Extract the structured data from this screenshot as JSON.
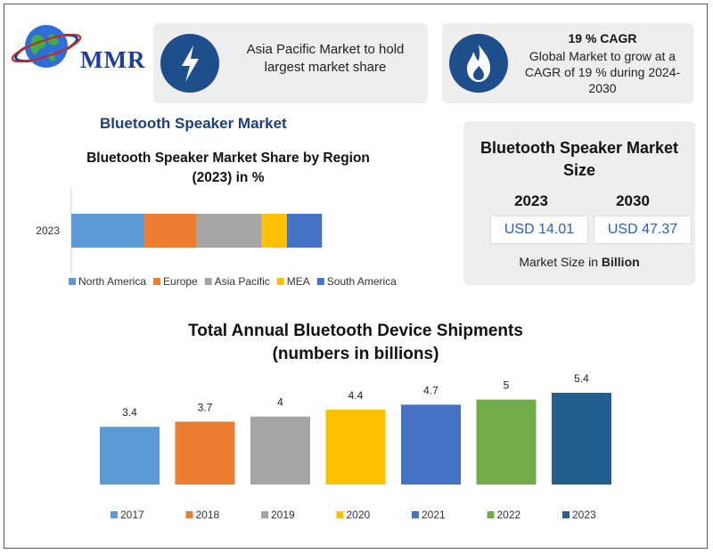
{
  "logo": {
    "text": "MMR"
  },
  "highlights": {
    "asia": {
      "text": "Asia Pacific Market to hold largest market share",
      "icon": "lightning-bolt-icon"
    },
    "cagr": {
      "title": "19 % CAGR",
      "text": "Global Market to grow at a CAGR of 19 % during 2024-2030",
      "icon": "flame-icon"
    }
  },
  "section_title": "Bluetooth Speaker Market",
  "market_size": {
    "title": "Bluetooth Speaker Market Size",
    "year_a": "2023",
    "value_a": "USD 14.01",
    "year_b": "2030",
    "value_b": "USD 47.37",
    "footer_prefix": "Market Size in ",
    "footer_unit": "Billion"
  },
  "colors": {
    "accent_blue": "#1f4e8c",
    "title_blue": "#1d3f7a"
  },
  "chart_data": [
    {
      "type": "bar",
      "orientation": "horizontal-stacked",
      "title_lines": [
        "Bluetooth Speaker Market Share by Region",
        "(2023) in %"
      ],
      "categories": [
        "2023"
      ],
      "series": [
        {
          "name": "North America",
          "values": [
            29
          ],
          "color": "#5b9bd5"
        },
        {
          "name": "Europe",
          "values": [
            21
          ],
          "color": "#ed7d31"
        },
        {
          "name": "Asia Pacific",
          "values": [
            26
          ],
          "color": "#a5a5a5"
        },
        {
          "name": "MEA",
          "values": [
            10
          ],
          "color": "#ffc000"
        },
        {
          "name": "South America",
          "values": [
            14
          ],
          "color": "#4472c4"
        }
      ],
      "xlim": [
        0,
        128
      ],
      "legend": "bottom"
    },
    {
      "type": "bar",
      "title_lines": [
        "Total Annual  Bluetooth Device Shipments",
        "(numbers in billions)"
      ],
      "categories": [
        "2017",
        "2018",
        "2019",
        "2020",
        "2021",
        "2022",
        "2023"
      ],
      "values": [
        3.4,
        3.7,
        4,
        4.4,
        4.7,
        5,
        5.4
      ],
      "value_labels": [
        "3.4",
        "3.7",
        "4",
        "4.4",
        "4.7",
        "5",
        "5.4"
      ],
      "colors": [
        "#5b9bd5",
        "#ed7d31",
        "#a5a5a5",
        "#ffc000",
        "#4472c4",
        "#70ad47",
        "#255e91"
      ],
      "ylim": [
        0,
        5.4
      ],
      "legend": "bottom"
    }
  ]
}
